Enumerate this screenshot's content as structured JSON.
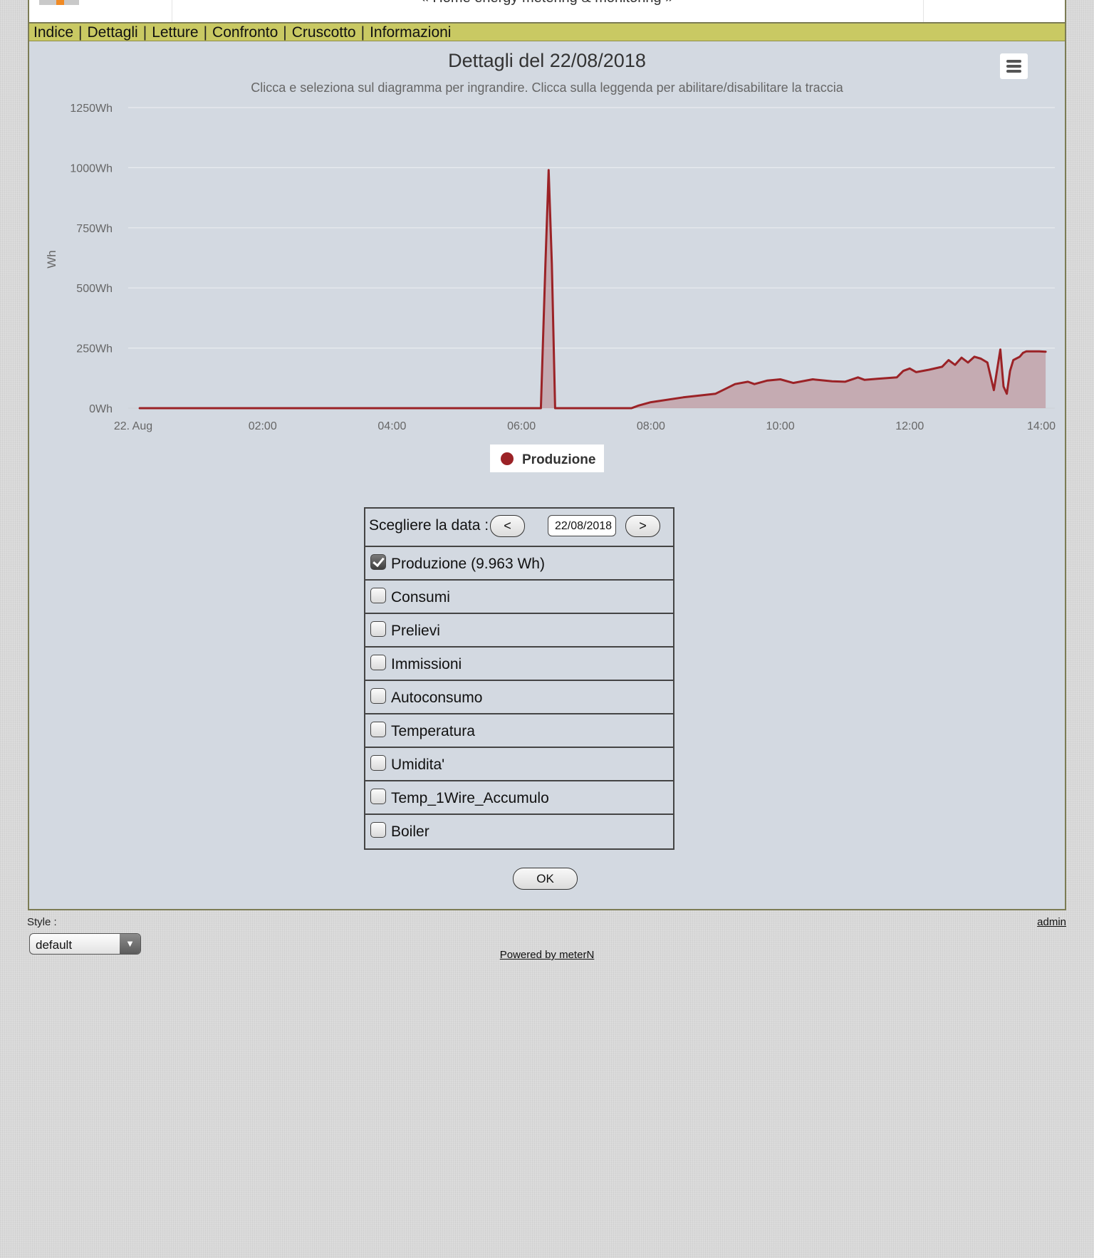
{
  "header": {
    "title": "« Home energy metering & monitoring »"
  },
  "menu": {
    "items": [
      "Indice",
      "Dettagli",
      "Letture",
      "Confronto",
      "Cruscotto",
      "Informazioni"
    ],
    "separator": "|"
  },
  "chart_data": {
    "type": "area",
    "title": "Dettagli del 22/08/2018",
    "subtitle": "Clicca e seleziona sul diagramma per ingrandire. Clicca sulla leggenda per abilitare/disabilitare la traccia",
    "ylabel": "Wh",
    "xlabel": "",
    "ylim": [
      0,
      1250
    ],
    "y_ticks": [
      "0Wh",
      "250Wh",
      "500Wh",
      "750Wh",
      "1000Wh",
      "1250Wh"
    ],
    "x_ticks": [
      "22. Aug",
      "02:00",
      "04:00",
      "06:00",
      "08:00",
      "10:00",
      "12:00",
      "14:00"
    ],
    "x_range_hours": [
      0,
      14
    ],
    "grid": true,
    "legend_position": "bottom-center",
    "series": [
      {
        "name": "Produzione",
        "color": "#9b2226",
        "x_hours": [
          0.1,
          6.3,
          6.37,
          6.42,
          6.47,
          6.52,
          6.6,
          7.7,
          7.8,
          8.0,
          8.5,
          9.0,
          9.3,
          9.5,
          9.6,
          9.8,
          10.0,
          10.2,
          10.5,
          10.8,
          11.0,
          11.2,
          11.3,
          11.5,
          11.8,
          11.9,
          12.0,
          12.1,
          12.3,
          12.5,
          12.6,
          12.7,
          12.8,
          12.9,
          13.0,
          13.1,
          13.2,
          13.3,
          13.4,
          13.45,
          13.5,
          13.55,
          13.6,
          13.7,
          13.75,
          13.8,
          14.0,
          14.1
        ],
        "values": [
          0,
          0,
          600,
          990,
          600,
          0,
          0,
          0,
          10,
          25,
          45,
          60,
          100,
          110,
          100,
          115,
          120,
          105,
          120,
          112,
          110,
          128,
          118,
          122,
          128,
          155,
          165,
          150,
          160,
          172,
          200,
          180,
          210,
          190,
          214,
          206,
          190,
          75,
          244,
          90,
          60,
          155,
          200,
          214,
          230,
          236,
          236,
          235
        ]
      }
    ]
  },
  "chart_menu": {
    "icon": "hamburger-menu-icon"
  },
  "form": {
    "date_label": "Scegliere la data :",
    "prev_label": "<",
    "next_label": ">",
    "date_value": "22/08/2018",
    "options": [
      {
        "label": "Produzione (9.963 Wh)",
        "checked": true
      },
      {
        "label": "Consumi",
        "checked": false
      },
      {
        "label": "Prelievi",
        "checked": false
      },
      {
        "label": "Immissioni",
        "checked": false
      },
      {
        "label": "Autoconsumo",
        "checked": false
      },
      {
        "label": "Temperatura",
        "checked": false
      },
      {
        "label": "Umidita'",
        "checked": false
      },
      {
        "label": "Temp_1Wire_Accumulo",
        "checked": false
      },
      {
        "label": "Boiler",
        "checked": false
      }
    ],
    "ok_label": "OK"
  },
  "footer": {
    "style_label": "Style :",
    "style_value": "default",
    "admin_label": "admin",
    "powered_label": "Powered by meterN"
  },
  "colors": {
    "frame_bg": "#d3d9e1",
    "menubar_bg": "#c9c963",
    "series": "#9b2226"
  }
}
